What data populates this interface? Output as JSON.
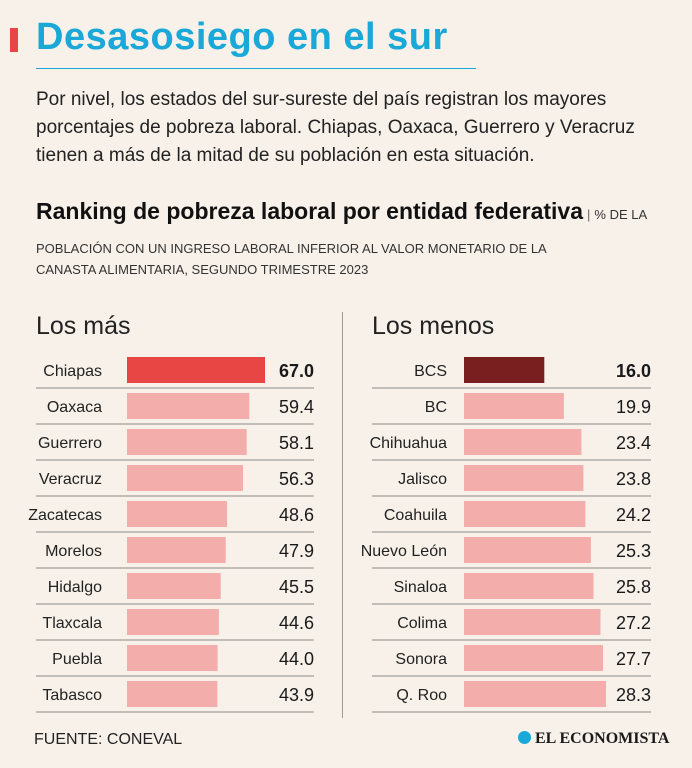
{
  "header": {
    "title": "Desasosiego en el sur",
    "intro": "Por nivel, los estados del sur-sureste del país registran los mayores porcentajes de pobreza laboral. Chiapas, Oaxaca, Guerrero y Veracruz tienen a más de la mitad de su población en esta situación.",
    "accent_color": "#e84545",
    "title_color": "#1aa8d8"
  },
  "chart_data": [
    {
      "type": "bar",
      "title": "Ranking de pobreza laboral por entidad federativa",
      "subtitle_part1": "% DE LA POBLACIÓN  CON UN INGRESO LABORAL INFERIOR AL VALOR MONETARIO DE LA",
      "subtitle_part2": "CANASTA ALIMENTARIA, SEGUNDO TRIMESTRE 2023",
      "panel_title": "Los más",
      "orientation": "horizontal",
      "categories": [
        "Chiapas",
        "Oaxaca",
        "Guerrero",
        "Veracruz",
        "Zacatecas",
        "Morelos",
        "Hidalgo",
        "Tlaxcala",
        "Puebla",
        "Tabasco"
      ],
      "values": [
        67.0,
        59.4,
        58.1,
        56.3,
        48.6,
        47.9,
        45.5,
        44.6,
        44.0,
        43.9
      ],
      "labels": [
        "67.0",
        "59.4",
        "58.1",
        "56.3",
        "48.6",
        "47.9",
        "45.5",
        "44.6",
        "44.0",
        "43.9"
      ],
      "highlight_index": 0,
      "bar_color": "#f3adab",
      "highlight_color": "#e84545",
      "grid": false
    },
    {
      "type": "bar",
      "panel_title": "Los menos",
      "orientation": "horizontal",
      "categories": [
        "BCS",
        "BC",
        "Chihuahua",
        "Jalisco",
        "Coahuila",
        "Nuevo León",
        "Sinaloa",
        "Colima",
        "Sonora",
        "Q. Roo"
      ],
      "values": [
        16.0,
        19.9,
        23.4,
        23.8,
        24.2,
        25.3,
        25.8,
        27.2,
        27.7,
        28.3
      ],
      "labels": [
        "16.0",
        "19.9",
        "23.4",
        "23.8",
        "24.2",
        "25.3",
        "25.8",
        "27.2",
        "27.7",
        "28.3"
      ],
      "highlight_index": 0,
      "bar_color": "#f3adab",
      "highlight_color": "#7a1f1f",
      "grid": false
    }
  ],
  "footer": {
    "source": "FUENTE: CONEVAL",
    "logo_text": "EL ECONOMISTA",
    "logo_color": "#1aa8d8"
  }
}
